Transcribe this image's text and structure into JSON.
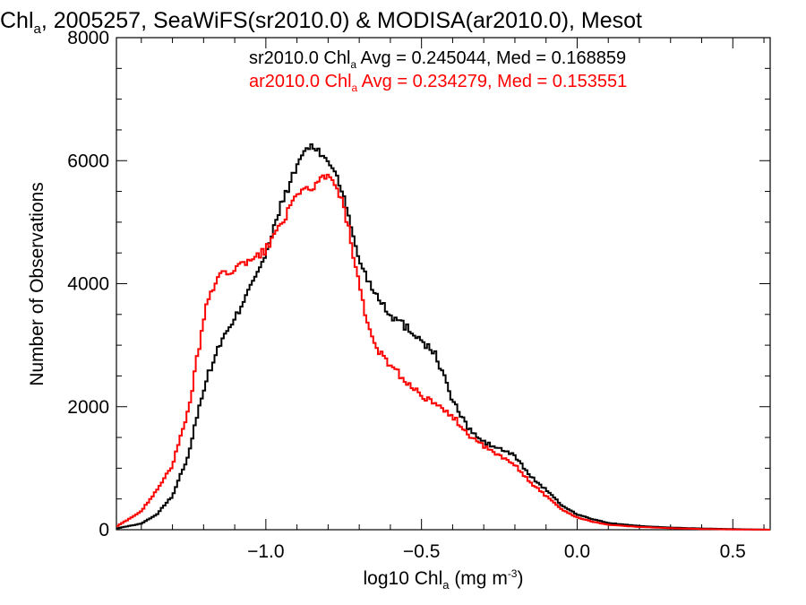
{
  "chart_data": {
    "type": "line",
    "title": "Chl",
    "title_sub": "a",
    "title_rest": ", 2005257, SeaWiFS(sr2010.0) & MODISA(ar2010.0), Mesot",
    "xlabel": "log10 Chl",
    "xlabel_sub": "a",
    "xlabel_unit": " (mg m",
    "xlabel_sup": "-3",
    "xlabel_close": ")",
    "ylabel": "Number of Observations",
    "xlim": [
      -1.48,
      0.62
    ],
    "ylim": [
      0,
      8000
    ],
    "x_ticks": [
      -1.0,
      -0.5,
      0.0,
      0.5
    ],
    "x_tick_labels": [
      "−1.0",
      "−0.5",
      "0.0",
      "0.5"
    ],
    "y_ticks": [
      0,
      2000,
      4000,
      6000,
      8000
    ],
    "y_tick_labels": [
      "0",
      "2000",
      "4000",
      "6000",
      "8000"
    ],
    "legend": [
      {
        "prefix": "sr2010.0 Chl",
        "sub": "a",
        "text": " Avg = 0.245044, Med = 0.168859",
        "color": "#000000"
      },
      {
        "prefix": "ar2010.0 Chl",
        "sub": "a",
        "text": " Avg = 0.234279, Med = 0.153551",
        "color": "#ff0000"
      }
    ],
    "legend_placement": "top-right",
    "series": [
      {
        "name": "sr2010.0",
        "color": "#000000",
        "x": [
          -1.48,
          -1.4,
          -1.35,
          -1.3,
          -1.25,
          -1.2,
          -1.15,
          -1.1,
          -1.05,
          -1.0,
          -0.95,
          -0.9,
          -0.88,
          -0.86,
          -0.85,
          -0.84,
          -0.82,
          -0.8,
          -0.78,
          -0.76,
          -0.74,
          -0.72,
          -0.7,
          -0.68,
          -0.66,
          -0.64,
          -0.6,
          -0.55,
          -0.5,
          -0.45,
          -0.4,
          -0.35,
          -0.3,
          -0.25,
          -0.2,
          -0.15,
          -0.1,
          -0.05,
          0.0,
          0.05,
          0.1,
          0.2,
          0.3,
          0.4,
          0.5,
          0.62
        ],
        "y": [
          20,
          100,
          250,
          550,
          1200,
          2300,
          3000,
          3400,
          4000,
          4450,
          5300,
          5900,
          6150,
          6200,
          6280,
          6150,
          6100,
          6000,
          5850,
          5600,
          5200,
          4800,
          4400,
          4150,
          3950,
          3800,
          3500,
          3300,
          3100,
          2800,
          2100,
          1650,
          1420,
          1320,
          1200,
          870,
          650,
          400,
          250,
          170,
          110,
          60,
          35,
          20,
          10,
          0
        ]
      },
      {
        "name": "ar2010.0",
        "color": "#ff0000",
        "x": [
          -1.48,
          -1.4,
          -1.35,
          -1.3,
          -1.25,
          -1.22,
          -1.2,
          -1.18,
          -1.15,
          -1.12,
          -1.1,
          -1.05,
          -1.0,
          -0.95,
          -0.9,
          -0.87,
          -0.84,
          -0.82,
          -0.8,
          -0.78,
          -0.76,
          -0.74,
          -0.72,
          -0.7,
          -0.68,
          -0.66,
          -0.64,
          -0.6,
          -0.55,
          -0.5,
          -0.45,
          -0.4,
          -0.35,
          -0.3,
          -0.25,
          -0.2,
          -0.15,
          -0.1,
          -0.05,
          0.0,
          0.05,
          0.1,
          0.2,
          0.3,
          0.4,
          0.5,
          0.62
        ],
        "y": [
          50,
          300,
          650,
          1050,
          1900,
          2800,
          3400,
          3850,
          4100,
          4200,
          4250,
          4350,
          4550,
          5000,
          5400,
          5550,
          5600,
          5700,
          5750,
          5600,
          5400,
          5050,
          4500,
          3950,
          3450,
          3100,
          2900,
          2700,
          2400,
          2200,
          2000,
          1850,
          1550,
          1350,
          1200,
          1050,
          770,
          550,
          330,
          200,
          130,
          80,
          45,
          25,
          12,
          5,
          0
        ]
      }
    ]
  }
}
